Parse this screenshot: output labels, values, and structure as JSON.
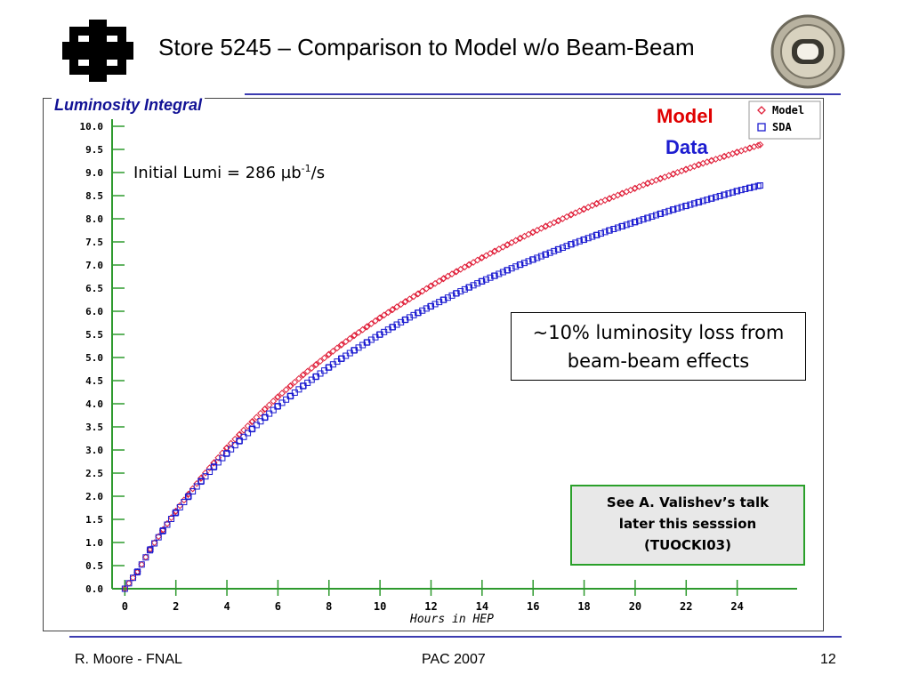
{
  "slide": {
    "title": "Store 5245 – Comparison to Model w/o Beam-Beam",
    "footer_left": "R. Moore - FNAL",
    "footer_center": "PAC 2007",
    "footer_right": "12"
  },
  "annotations": {
    "model_label": "Model",
    "data_label": "Data",
    "initial_lumi_prefix": "Initial Lumi = 286 µb",
    "initial_lumi_exp": "-1",
    "initial_lumi_suffix": "/s",
    "loss_line1": "~10% luminosity loss from",
    "loss_line2": "beam-beam effects",
    "talk_line1": "See A. Valishev’s talk",
    "talk_line2": "later this sesssion",
    "talk_line3": "(TUOCKI03)"
  },
  "colors": {
    "model": "#e0203a",
    "data": "#1a1ad0",
    "axis": "#2e9a2e",
    "frame": "#444444"
  },
  "chart_data": {
    "type": "scatter",
    "ylabel": "Luminosity Integral",
    "xlabel": "Hours in HEP",
    "xlim": [
      -0.5,
      26
    ],
    "ylim": [
      0,
      10
    ],
    "xticks": [
      "0",
      "2",
      "4",
      "6",
      "8",
      "10",
      "12",
      "14",
      "16",
      "18",
      "20",
      "22",
      "24"
    ],
    "yticks": [
      "0.0",
      "0.5",
      "1.0",
      "1.5",
      "2.0",
      "2.5",
      "3.0",
      "3.5",
      "4.0",
      "4.5",
      "5.0",
      "5.5",
      "6.0",
      "6.5",
      "7.0",
      "7.5",
      "8.0",
      "8.5",
      "9.0",
      "9.5",
      "10.0"
    ],
    "legend": {
      "position": "top-right",
      "entries": [
        "Model",
        "SDA"
      ]
    },
    "series": [
      {
        "name": "Model",
        "marker": "diamond",
        "x": [
          0,
          0.5,
          1,
          1.5,
          2,
          2.5,
          3,
          3.5,
          4,
          4.5,
          5,
          5.5,
          6,
          6.5,
          7,
          7.5,
          8,
          8.5,
          9,
          9.5,
          10,
          10.5,
          11,
          11.5,
          12,
          12.5,
          13,
          13.5,
          14,
          14.5,
          15,
          15.5,
          16,
          16.5,
          17,
          17.5,
          18,
          18.5,
          19,
          19.5,
          20,
          20.5,
          21,
          21.5,
          22,
          22.5,
          23,
          23.5,
          24,
          24.5,
          24.9
        ],
        "y": [
          0.0,
          0.37,
          0.86,
          1.28,
          1.68,
          2.05,
          2.4,
          2.73,
          3.05,
          3.34,
          3.62,
          3.89,
          4.15,
          4.39,
          4.63,
          4.85,
          5.07,
          5.28,
          5.48,
          5.67,
          5.86,
          6.04,
          6.21,
          6.38,
          6.55,
          6.71,
          6.86,
          7.01,
          7.16,
          7.3,
          7.44,
          7.58,
          7.71,
          7.84,
          7.96,
          8.09,
          8.21,
          8.33,
          8.44,
          8.55,
          8.66,
          8.77,
          8.87,
          8.97,
          9.07,
          9.17,
          9.26,
          9.35,
          9.44,
          9.53,
          9.6
        ]
      },
      {
        "name": "SDA",
        "marker": "square",
        "x": [
          0,
          0.5,
          1,
          1.5,
          2,
          2.5,
          3,
          3.5,
          4,
          4.5,
          5,
          5.5,
          6,
          6.5,
          7,
          7.5,
          8,
          8.5,
          9,
          9.5,
          10,
          10.5,
          11,
          11.5,
          12,
          12.5,
          13,
          13.5,
          14,
          14.5,
          15,
          15.5,
          16,
          16.5,
          17,
          17.5,
          18,
          18.5,
          19,
          19.5,
          20,
          20.5,
          21,
          21.5,
          22,
          22.5,
          23,
          23.5,
          24,
          24.5,
          24.9
        ],
        "y": [
          0.0,
          0.37,
          0.85,
          1.26,
          1.65,
          2.0,
          2.33,
          2.64,
          2.93,
          3.2,
          3.46,
          3.71,
          3.95,
          4.17,
          4.39,
          4.59,
          4.79,
          4.98,
          5.16,
          5.33,
          5.5,
          5.66,
          5.82,
          5.97,
          6.11,
          6.25,
          6.39,
          6.52,
          6.65,
          6.77,
          6.89,
          7.01,
          7.12,
          7.23,
          7.34,
          7.45,
          7.55,
          7.65,
          7.75,
          7.84,
          7.93,
          8.02,
          8.11,
          8.2,
          8.28,
          8.36,
          8.44,
          8.52,
          8.6,
          8.67,
          8.72
        ]
      }
    ]
  }
}
